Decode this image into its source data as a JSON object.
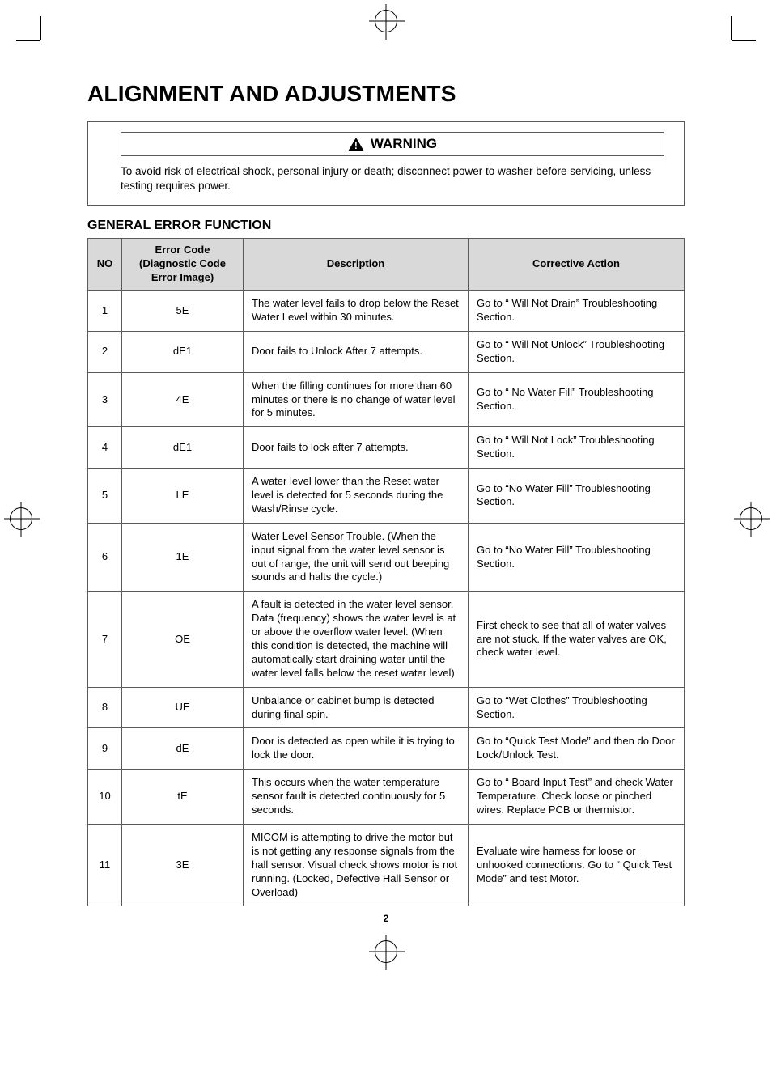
{
  "title": "ALIGNMENT AND ADJUSTMENTS",
  "warning": {
    "label": "WARNING",
    "text": "To avoid risk of electrical shock, personal injury or death; disconnect power to washer before servicing, unless testing requires power."
  },
  "section_title": "GENERAL ERROR FUNCTION",
  "table": {
    "headers": {
      "no": "NO",
      "code": "Error Code\n(Diagnostic Code\nError Image)",
      "description": "Description",
      "action": "Corrective Action"
    },
    "rows": [
      {
        "no": "1",
        "code": "5E",
        "description": "The water level fails to drop below the Reset Water Level within 30 minutes.",
        "action": "Go to “ Will Not Drain” Troubleshooting Section."
      },
      {
        "no": "2",
        "code": "dE1",
        "description": "Door fails to Unlock After 7 attempts.",
        "action": "Go to “ Will Not Unlock” Troubleshooting Section."
      },
      {
        "no": "3",
        "code": "4E",
        "description": "When the filling continues for more than 60 minutes or there is no change of water level for 5 minutes.",
        "action": "Go to “ No Water Fill” Troubleshooting Section."
      },
      {
        "no": "4",
        "code": "dE1",
        "description": "Door fails to lock after 7 attempts.",
        "action": "Go to “ Will Not Lock” Troubleshooting Section."
      },
      {
        "no": "5",
        "code": "LE",
        "description": "A water level lower than the Reset water level is detected for 5 seconds during the Wash/Rinse cycle.",
        "action": "Go to “No Water Fill” Troubleshooting Section."
      },
      {
        "no": "6",
        "code": "1E",
        "description": "Water Level Sensor Trouble. (When the input signal from the water level sensor is out of range, the unit will send out beeping sounds and halts the cycle.)",
        "action": "Go to “No Water Fill” Troubleshooting Section."
      },
      {
        "no": "7",
        "code": "OE",
        "description": "A fault is detected in the water level sensor. Data (frequency) shows the water level is at or above the overflow water level. (When this condition is detected, the machine will automatically start draining water until the water level falls below the reset water level)",
        "action": "First check to see that all of water valves are not stuck. If the water valves are OK, check water level."
      },
      {
        "no": "8",
        "code": "UE",
        "description": "Unbalance or cabinet bump is detected during final spin.",
        "action": "Go to “Wet Clothes” Troubleshooting Section."
      },
      {
        "no": "9",
        "code": "dE",
        "description": "Door is detected as open while it is trying to lock the door.",
        "action": "Go to “Quick Test Mode” and then do Door Lock/Unlock Test."
      },
      {
        "no": "10",
        "code": "tE",
        "description": "This occurs when the water temperature sensor fault  is detected continuously for 5 seconds.",
        "action": "Go to “ Board Input Test” and check Water Temperature. Check loose or pinched wires. Replace PCB or thermistor."
      },
      {
        "no": "11",
        "code": "3E",
        "description": "MICOM is attempting to drive the motor but is not getting any response signals from the hall sensor. Visual check shows motor is not running. (Locked, Defective Hall Sensor or Overload)",
        "action": "Evaluate wire harness for loose or unhooked connections. Go to “ Quick Test Mode” and test Motor."
      }
    ]
  },
  "page_number": "2",
  "colors": {
    "header_bg": "#d9d9d9",
    "border": "#5a5a5a",
    "text": "#000000",
    "background": "#ffffff"
  }
}
